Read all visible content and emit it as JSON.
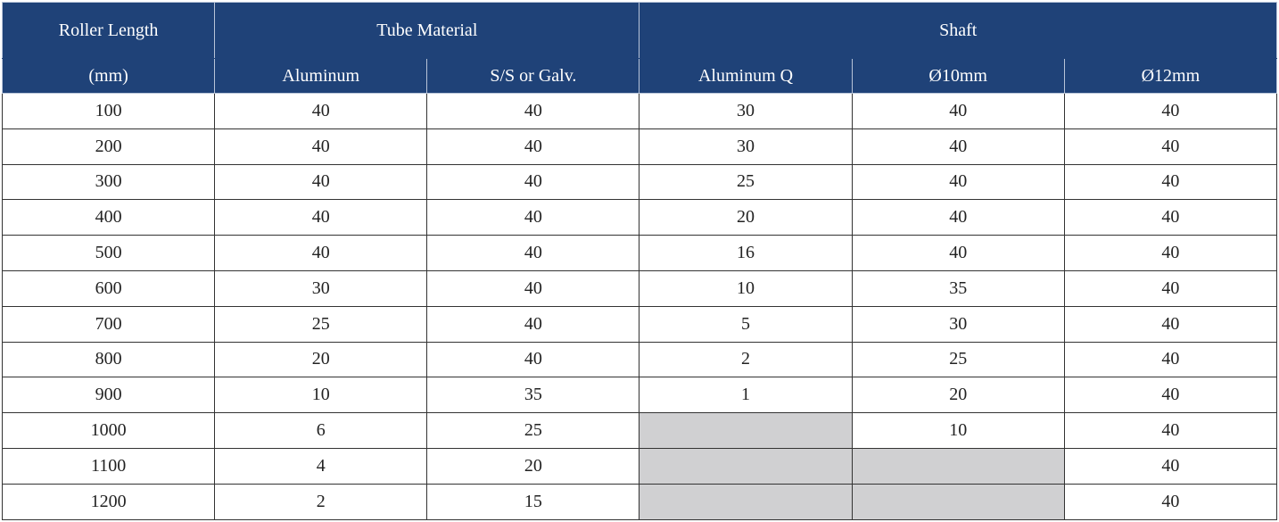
{
  "table": {
    "header": {
      "row1": [
        "Roller Length",
        "Tube Material",
        "Shaft"
      ],
      "row2": [
        "(mm)",
        "Aluminum",
        "S/S or Galv.",
        "Aluminum Q",
        "Ø10mm",
        "Ø12mm"
      ]
    },
    "rows": [
      [
        100,
        40,
        40,
        30,
        40,
        40
      ],
      [
        200,
        40,
        40,
        30,
        40,
        40
      ],
      [
        300,
        40,
        40,
        25,
        40,
        40
      ],
      [
        400,
        40,
        40,
        20,
        40,
        40
      ],
      [
        500,
        40,
        40,
        16,
        40,
        40
      ],
      [
        600,
        30,
        40,
        10,
        35,
        40
      ],
      [
        700,
        25,
        40,
        5,
        30,
        40
      ],
      [
        800,
        20,
        40,
        2,
        25,
        40
      ],
      [
        900,
        10,
        35,
        1,
        20,
        40
      ],
      [
        1000,
        6,
        25,
        null,
        10,
        40
      ],
      [
        1100,
        4,
        20,
        null,
        null,
        40
      ],
      [
        1200,
        2,
        15,
        null,
        null,
        40
      ]
    ]
  }
}
